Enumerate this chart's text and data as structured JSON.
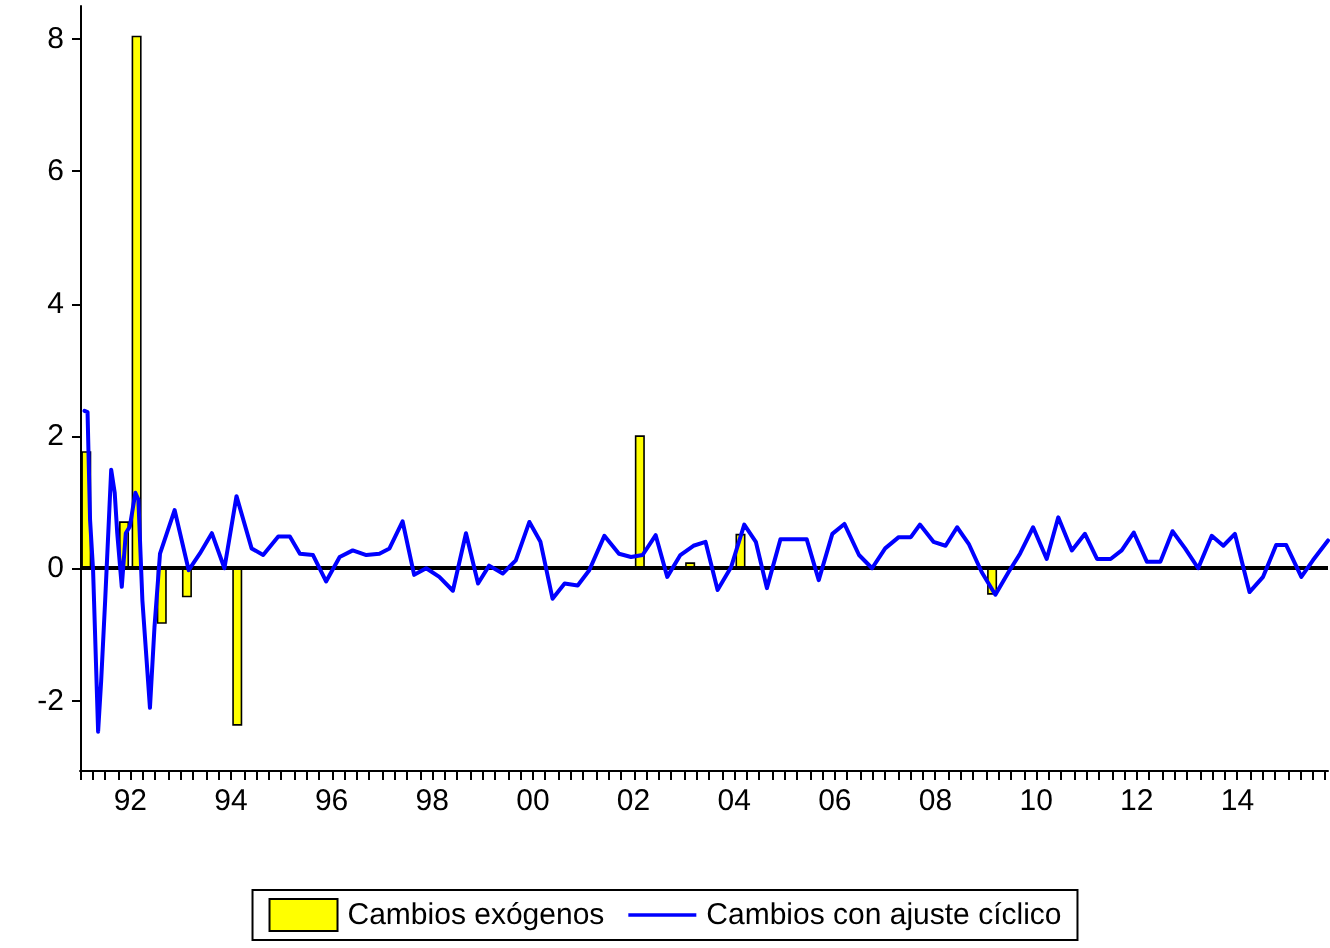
{
  "chart_data": {
    "type": "bar",
    "series": [
      {
        "name": "Cambios exógenos",
        "color": "#ffff00",
        "x": [
          1991.125,
          1991.875,
          1992.125,
          1992.625,
          1993.125,
          1994.125,
          2002.125,
          2003.125,
          2004.125,
          2009.125
        ],
        "values": [
          1.77,
          0.71,
          8.05,
          -0.84,
          -0.44,
          -2.38,
          2.01,
          0.09,
          0.52,
          -0.4
        ]
      },
      {
        "name": "Cambios con ajuste cíclico",
        "type": "line",
        "color": "#0000ff",
        "x": [
          1991.09,
          1991.15,
          1991.2,
          1991.26,
          1991.36,
          1991.42,
          1991.5,
          1991.62,
          1991.69,
          1991.74,
          1991.83,
          1991.91,
          1991.99,
          1992.1,
          1992.16,
          1992.24,
          1992.39,
          1992.48,
          1992.59,
          1992.88,
          1993.16,
          1993.38,
          1993.62,
          1993.87,
          1994.11,
          1994.41,
          1994.64,
          1994.94,
          1995.17,
          1995.37,
          1995.63,
          1995.89,
          1996.16,
          1996.42,
          1996.69,
          1996.95,
          1997.15,
          1997.41,
          1997.64,
          1997.88,
          1998.14,
          1998.41,
          1998.67,
          1998.91,
          1999.13,
          1999.4,
          1999.66,
          1999.93,
          2000.15,
          2000.39,
          2000.63,
          2000.89,
          2001.12,
          2001.42,
          2001.71,
          2001.95,
          2002.18,
          2002.44,
          2002.67,
          2002.93,
          2003.19,
          2003.43,
          2003.67,
          2003.94,
          2004.2,
          2004.43,
          2004.65,
          2004.92,
          2005.44,
          2005.68,
          2005.95,
          2006.19,
          2006.48,
          2006.74,
          2007.0,
          2007.27,
          2007.51,
          2007.69,
          2007.96,
          2008.2,
          2008.43,
          2008.66,
          2008.92,
          2009.19,
          2009.45,
          2009.68,
          2009.94,
          2010.21,
          2010.44,
          2010.71,
          2010.97,
          2011.21,
          2011.48,
          2011.7,
          2011.94,
          2012.2,
          2012.47,
          2012.71,
          2012.96,
          2013.22,
          2013.49,
          2013.72,
          2013.95,
          2014.24,
          2014.51,
          2014.77,
          2014.97,
          2015.27,
          2015.5,
          2015.8
        ],
        "values": [
          2.38,
          2.36,
          0.73,
          -0.03,
          -2.47,
          -1.71,
          -0.49,
          1.49,
          1.14,
          0.53,
          -0.28,
          0.53,
          0.63,
          1.14,
          1.04,
          -0.49,
          -2.11,
          -0.89,
          0.22,
          0.88,
          -0.03,
          0.22,
          0.53,
          0,
          1.09,
          0.3,
          0.2,
          0.48,
          0.48,
          0.22,
          0.2,
          -0.2,
          0.17,
          0.27,
          0.2,
          0.22,
          0.3,
          0.71,
          -0.1,
          0,
          -0.13,
          -0.34,
          0.53,
          -0.23,
          0.04,
          -0.08,
          0.12,
          0.7,
          0.4,
          -0.46,
          -0.23,
          -0.26,
          -0.03,
          0.49,
          0.22,
          0.17,
          0.2,
          0.5,
          -0.13,
          0.2,
          0.34,
          0.4,
          -0.33,
          0.02,
          0.66,
          0.4,
          -0.3,
          0.44,
          0.44,
          -0.18,
          0.52,
          0.67,
          0.2,
          0,
          0.3,
          0.47,
          0.47,
          0.66,
          0.4,
          0.34,
          0.62,
          0.37,
          -0.06,
          -0.4,
          -0.06,
          0.22,
          0.62,
          0.14,
          0.77,
          0.27,
          0.52,
          0.14,
          0.14,
          0.27,
          0.54,
          0.1,
          0.1,
          0.56,
          0.3,
          0,
          0.49,
          0.34,
          0.52,
          -0.36,
          -0.13,
          0.35,
          0.35,
          -0.13,
          0.12,
          0.42
        ]
      }
    ],
    "xlim": [
      1991,
      2015.8
    ],
    "xticks": [
      {
        "value": 1991,
        "label": null
      },
      {
        "value": 1991.25,
        "label": null
      },
      {
        "value": 1991.5,
        "label": null
      },
      {
        "value": 1991.75,
        "label": null
      },
      {
        "value": 1992,
        "label": "92"
      },
      {
        "value": 1992.25,
        "label": null
      },
      {
        "value": 1992.5,
        "label": null
      },
      {
        "value": 1992.75,
        "label": null
      },
      {
        "value": 1993,
        "label": null
      },
      {
        "value": 1993.25,
        "label": null
      },
      {
        "value": 1993.5,
        "label": null
      },
      {
        "value": 1993.75,
        "label": null
      },
      {
        "value": 1994,
        "label": "94"
      },
      {
        "value": 1994.25,
        "label": null
      },
      {
        "value": 1994.5,
        "label": null
      },
      {
        "value": 1994.75,
        "label": null
      },
      {
        "value": 1995,
        "label": null
      },
      {
        "value": 1995.25,
        "label": null
      },
      {
        "value": 1995.5,
        "label": null
      },
      {
        "value": 1995.75,
        "label": null
      },
      {
        "value": 1996,
        "label": "96"
      },
      {
        "value": 1996.25,
        "label": null
      },
      {
        "value": 1996.5,
        "label": null
      },
      {
        "value": 1996.75,
        "label": null
      },
      {
        "value": 1997,
        "label": null
      },
      {
        "value": 1997.25,
        "label": null
      },
      {
        "value": 1997.5,
        "label": null
      },
      {
        "value": 1997.75,
        "label": null
      },
      {
        "value": 1998,
        "label": "98"
      },
      {
        "value": 1998.25,
        "label": null
      },
      {
        "value": 1998.5,
        "label": null
      },
      {
        "value": 1998.75,
        "label": null
      },
      {
        "value": 1999,
        "label": null
      },
      {
        "value": 1999.25,
        "label": null
      },
      {
        "value": 1999.5,
        "label": null
      },
      {
        "value": 1999.75,
        "label": null
      },
      {
        "value": 2000,
        "label": "00"
      },
      {
        "value": 2000.25,
        "label": null
      },
      {
        "value": 2000.5,
        "label": null
      },
      {
        "value": 2000.75,
        "label": null
      },
      {
        "value": 2001,
        "label": null
      },
      {
        "value": 2001.25,
        "label": null
      },
      {
        "value": 2001.5,
        "label": null
      },
      {
        "value": 2001.75,
        "label": null
      },
      {
        "value": 2002,
        "label": "02"
      },
      {
        "value": 2002.25,
        "label": null
      },
      {
        "value": 2002.5,
        "label": null
      },
      {
        "value": 2002.75,
        "label": null
      },
      {
        "value": 2003,
        "label": null
      },
      {
        "value": 2003.25,
        "label": null
      },
      {
        "value": 2003.5,
        "label": null
      },
      {
        "value": 2003.75,
        "label": null
      },
      {
        "value": 2004,
        "label": "04"
      },
      {
        "value": 2004.25,
        "label": null
      },
      {
        "value": 2004.5,
        "label": null
      },
      {
        "value": 2004.75,
        "label": null
      },
      {
        "value": 2005,
        "label": null
      },
      {
        "value": 2005.25,
        "label": null
      },
      {
        "value": 2005.5,
        "label": null
      },
      {
        "value": 2005.75,
        "label": null
      },
      {
        "value": 2006,
        "label": "06"
      },
      {
        "value": 2006.25,
        "label": null
      },
      {
        "value": 2006.5,
        "label": null
      },
      {
        "value": 2006.75,
        "label": null
      },
      {
        "value": 2007,
        "label": null
      },
      {
        "value": 2007.25,
        "label": null
      },
      {
        "value": 2007.5,
        "label": null
      },
      {
        "value": 2007.75,
        "label": null
      },
      {
        "value": 2008,
        "label": "08"
      },
      {
        "value": 2008.25,
        "label": null
      },
      {
        "value": 2008.5,
        "label": null
      },
      {
        "value": 2008.75,
        "label": null
      },
      {
        "value": 2009,
        "label": null
      },
      {
        "value": 2009.25,
        "label": null
      },
      {
        "value": 2009.5,
        "label": null
      },
      {
        "value": 2009.75,
        "label": null
      },
      {
        "value": 2010,
        "label": "10"
      },
      {
        "value": 2010.25,
        "label": null
      },
      {
        "value": 2010.5,
        "label": null
      },
      {
        "value": 2010.75,
        "label": null
      },
      {
        "value": 2011,
        "label": null
      },
      {
        "value": 2011.25,
        "label": null
      },
      {
        "value": 2011.5,
        "label": null
      },
      {
        "value": 2011.75,
        "label": null
      },
      {
        "value": 2012,
        "label": "12"
      },
      {
        "value": 2012.25,
        "label": null
      },
      {
        "value": 2012.5,
        "label": null
      },
      {
        "value": 2012.75,
        "label": null
      },
      {
        "value": 2013,
        "label": null
      },
      {
        "value": 2013.25,
        "label": null
      },
      {
        "value": 2013.5,
        "label": null
      },
      {
        "value": 2013.75,
        "label": null
      },
      {
        "value": 2014,
        "label": "14"
      },
      {
        "value": 2014.25,
        "label": null
      },
      {
        "value": 2014.5,
        "label": null
      },
      {
        "value": 2014.75,
        "label": null
      },
      {
        "value": 2015,
        "label": null
      },
      {
        "value": 2015.25,
        "label": null
      },
      {
        "value": 2015.5,
        "label": null
      },
      {
        "value": 2015.75,
        "label": null
      }
    ],
    "ylim": [
      -3.05,
      8.5
    ],
    "yticks": [
      -2,
      0,
      2,
      4,
      6,
      8
    ],
    "ref_lines": [
      {
        "axis": "y",
        "value": 0,
        "color": "#000000"
      }
    ],
    "grid": false,
    "legend": "bottom"
  }
}
